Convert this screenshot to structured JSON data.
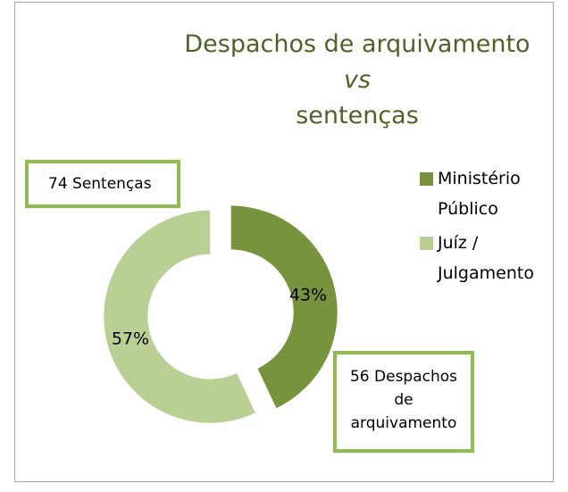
{
  "chart_data": {
    "type": "donut",
    "title_lines": [
      "Despachos de arquivamento",
      "vs",
      "sentenças"
    ],
    "categories": [
      "Ministério Público",
      "Juíz / Julgamento"
    ],
    "values": [
      43,
      57
    ],
    "value_labels": [
      "43%",
      "57%"
    ],
    "colors": [
      "#77933c",
      "#b9cf93"
    ],
    "annotations": [
      "56 Despachos de arquivamento",
      "74 Sentenças"
    ],
    "legend": "right"
  }
}
